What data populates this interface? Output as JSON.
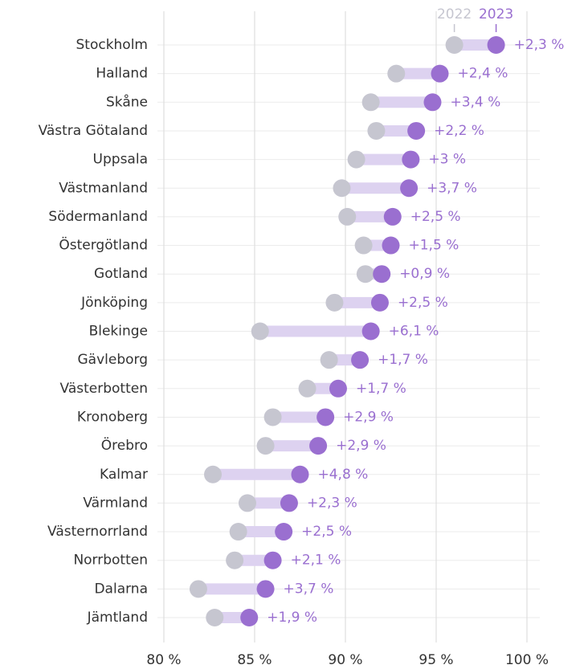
{
  "chart_data": {
    "type": "dumbbell",
    "categories": [
      "Stockholm",
      "Halland",
      "Skåne",
      "Västra Götaland",
      "Uppsala",
      "Västmanland",
      "Södermanland",
      "Östergötland",
      "Gotland",
      "Jönköping",
      "Blekinge",
      "Gävleborg",
      "Västerbotten",
      "Kronoberg",
      "Örebro",
      "Kalmar",
      "Värmland",
      "Västernorrland",
      "Norrbotten",
      "Dalarna",
      "Jämtland"
    ],
    "series": [
      {
        "name": "2022",
        "color": "#c6c6d0",
        "values": [
          96.0,
          92.8,
          91.4,
          91.7,
          90.6,
          89.8,
          90.1,
          91.0,
          91.1,
          89.4,
          85.3,
          89.1,
          87.9,
          86.0,
          85.6,
          82.7,
          84.6,
          84.1,
          83.9,
          81.9,
          82.8
        ]
      },
      {
        "name": "2023",
        "color": "#9a6fd0",
        "values": [
          98.3,
          95.2,
          94.8,
          93.9,
          93.6,
          93.5,
          92.6,
          92.5,
          92.0,
          91.9,
          91.4,
          90.8,
          89.6,
          88.9,
          88.5,
          87.5,
          86.9,
          86.6,
          86.0,
          85.6,
          84.7
        ]
      }
    ],
    "difference_labels": [
      "+2,3 %",
      "+2,4 %",
      "+3,4 %",
      "+2,2 %",
      "+3 %",
      "+3,7 %",
      "+2,5 %",
      "+1,5 %",
      "+0,9 %",
      "+2,5 %",
      "+6,1 %",
      "+1,7 %",
      "+1,7 %",
      "+2,9 %",
      "+2,9 %",
      "+4,8 %",
      "+2,3 %",
      "+2,5 %",
      "+2,1 %",
      "+3,7 %",
      "+1,9 %"
    ],
    "connector_color": "#ddd2f0",
    "xlim": [
      80,
      100
    ],
    "xticks": [
      {
        "value": 80,
        "label": "80 %"
      },
      {
        "value": 85,
        "label": "85 %"
      },
      {
        "value": 90,
        "label": "90 %"
      },
      {
        "value": 95,
        "label": "95 %"
      },
      {
        "value": 100,
        "label": "100 %"
      }
    ],
    "grid": true
  }
}
